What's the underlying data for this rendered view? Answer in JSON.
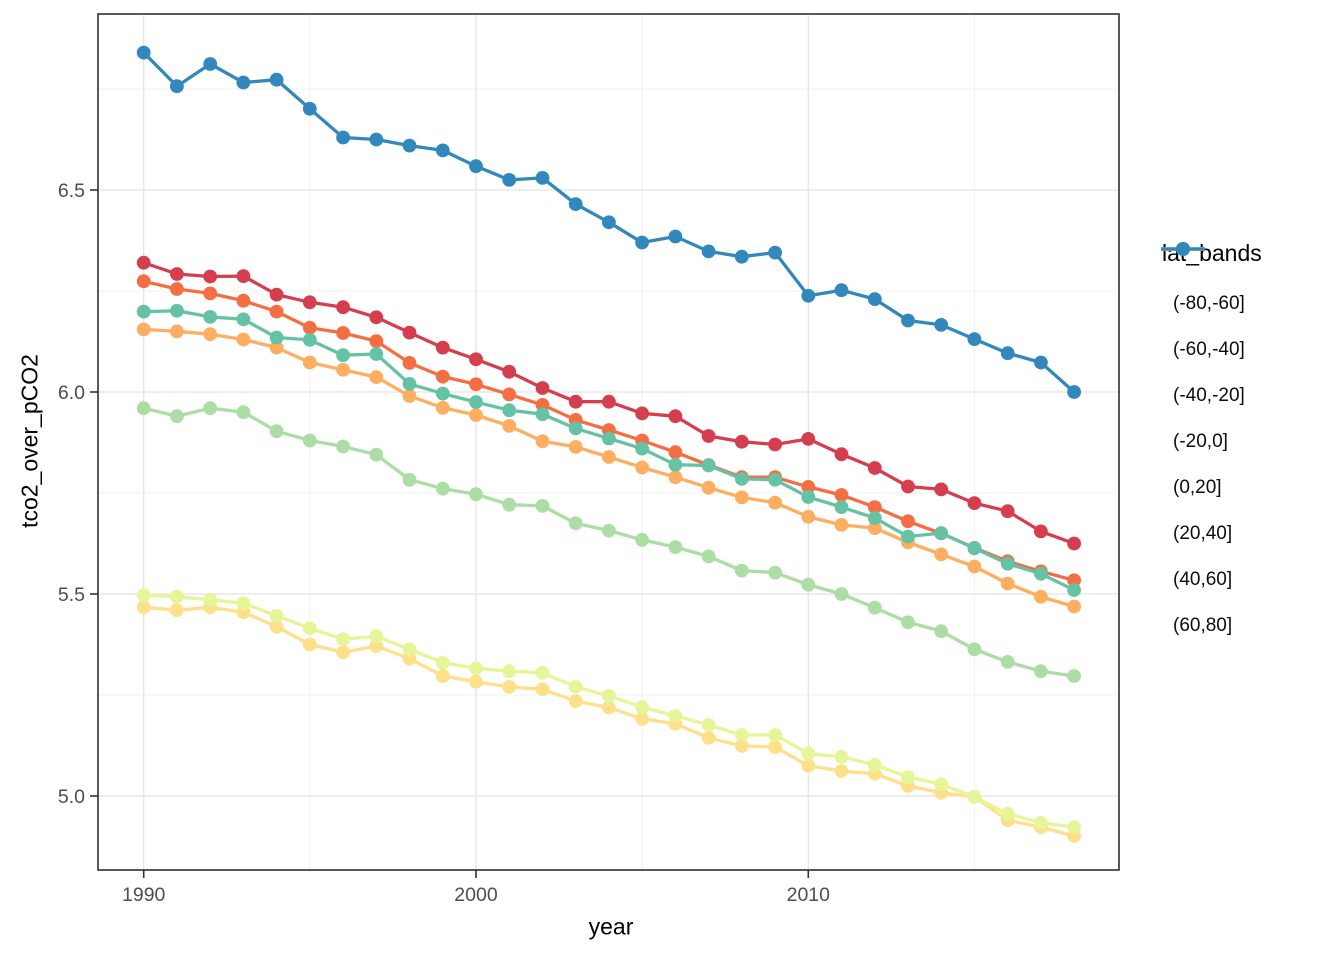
{
  "chart_data": {
    "type": "line",
    "title": "",
    "xlabel": "year",
    "ylabel": "tco2_over_pCO2",
    "legend_title": "lat_bands",
    "legend_position": "right",
    "grid": "major+minor",
    "x_ticks": [
      1990,
      2000,
      2010
    ],
    "x_tick_labels": [
      "1990",
      "2000",
      "2010"
    ],
    "x_minor": [
      1995,
      2005,
      2015
    ],
    "y_ticks": [
      5.0,
      5.5,
      6.0,
      6.5
    ],
    "y_tick_labels": [
      "5.0",
      "5.5",
      "6.0",
      "6.5"
    ],
    "y_minor": [
      5.25,
      5.75,
      6.25,
      6.75
    ],
    "x_range": [
      1988.6,
      2019.5
    ],
    "y_range": [
      4.82,
      6.94
    ],
    "x": [
      1990,
      1991,
      1992,
      1993,
      1994,
      1995,
      1996,
      1997,
      1998,
      1999,
      2000,
      2001,
      2002,
      2003,
      2004,
      2005,
      2006,
      2007,
      2008,
      2009,
      2010,
      2011,
      2012,
      2013,
      2014,
      2015,
      2016,
      2017,
      2018
    ],
    "series": [
      {
        "name": "(-80,-60]",
        "color": "#D53E4F",
        "values": [
          6.32,
          6.292,
          6.286,
          6.287,
          6.241,
          6.222,
          6.21,
          6.185,
          6.147,
          6.11,
          6.081,
          6.05,
          6.01,
          5.976,
          5.976,
          5.947,
          5.94,
          5.891,
          5.877,
          5.87,
          5.884,
          5.846,
          5.812,
          5.766,
          5.759,
          5.725,
          5.705,
          5.655,
          5.625
        ]
      },
      {
        "name": "(-60,-40]",
        "color": "#F46D43",
        "values": [
          6.274,
          6.255,
          6.244,
          6.226,
          6.199,
          6.159,
          6.146,
          6.126,
          6.072,
          6.038,
          6.019,
          5.994,
          5.968,
          5.931,
          5.906,
          5.88,
          5.851,
          5.819,
          5.789,
          5.789,
          5.765,
          5.745,
          5.715,
          5.68,
          5.65,
          5.614,
          5.581,
          5.556,
          5.534
        ]
      },
      {
        "name": "(-40,-20]",
        "color": "#FDAE61",
        "values": [
          6.155,
          6.15,
          6.143,
          6.13,
          6.11,
          6.073,
          6.055,
          6.037,
          5.99,
          5.961,
          5.943,
          5.916,
          5.878,
          5.864,
          5.839,
          5.813,
          5.789,
          5.763,
          5.739,
          5.726,
          5.691,
          5.671,
          5.663,
          5.628,
          5.598,
          5.568,
          5.526,
          5.493,
          5.469
        ]
      },
      {
        "name": "(-20,0]",
        "color": "#FEE08B",
        "values": [
          5.467,
          5.46,
          5.467,
          5.455,
          5.419,
          5.375,
          5.356,
          5.371,
          5.34,
          5.297,
          5.283,
          5.27,
          5.264,
          5.235,
          5.219,
          5.191,
          5.179,
          5.144,
          5.124,
          5.121,
          5.075,
          5.062,
          5.055,
          5.025,
          5.008,
          4.998,
          4.94,
          4.923,
          4.901
        ]
      },
      {
        "name": "(0,20]",
        "color": "#E6F598",
        "values": [
          5.497,
          5.493,
          5.486,
          5.477,
          5.446,
          5.415,
          5.388,
          5.395,
          5.363,
          5.33,
          5.316,
          5.309,
          5.305,
          5.27,
          5.248,
          5.22,
          5.198,
          5.176,
          5.151,
          5.151,
          5.105,
          5.097,
          5.077,
          5.047,
          5.029,
          4.998,
          4.956,
          4.934,
          4.923
        ]
      },
      {
        "name": "(20,40]",
        "color": "#ABDDA4",
        "values": [
          5.96,
          5.94,
          5.96,
          5.95,
          5.903,
          5.88,
          5.865,
          5.845,
          5.783,
          5.761,
          5.747,
          5.721,
          5.718,
          5.675,
          5.657,
          5.634,
          5.616,
          5.593,
          5.558,
          5.553,
          5.523,
          5.5,
          5.466,
          5.43,
          5.408,
          5.363,
          5.332,
          5.309,
          5.297
        ]
      },
      {
        "name": "(40,60]",
        "color": "#66C2A5",
        "values": [
          6.199,
          6.201,
          6.186,
          6.18,
          6.135,
          6.129,
          6.091,
          6.094,
          6.02,
          5.996,
          5.975,
          5.955,
          5.945,
          5.91,
          5.885,
          5.86,
          5.82,
          5.818,
          5.785,
          5.783,
          5.74,
          5.715,
          5.688,
          5.642,
          5.651,
          5.613,
          5.575,
          5.55,
          5.51
        ]
      },
      {
        "name": "(60,80]",
        "color": "#3288BD",
        "values": [
          6.84,
          6.757,
          6.812,
          6.766,
          6.773,
          6.701,
          6.63,
          6.625,
          6.61,
          6.598,
          6.559,
          6.525,
          6.53,
          6.465,
          6.42,
          6.37,
          6.385,
          6.348,
          6.335,
          6.345,
          6.238,
          6.252,
          6.23,
          6.177,
          6.166,
          6.131,
          6.096,
          6.073,
          6.0
        ]
      }
    ]
  }
}
